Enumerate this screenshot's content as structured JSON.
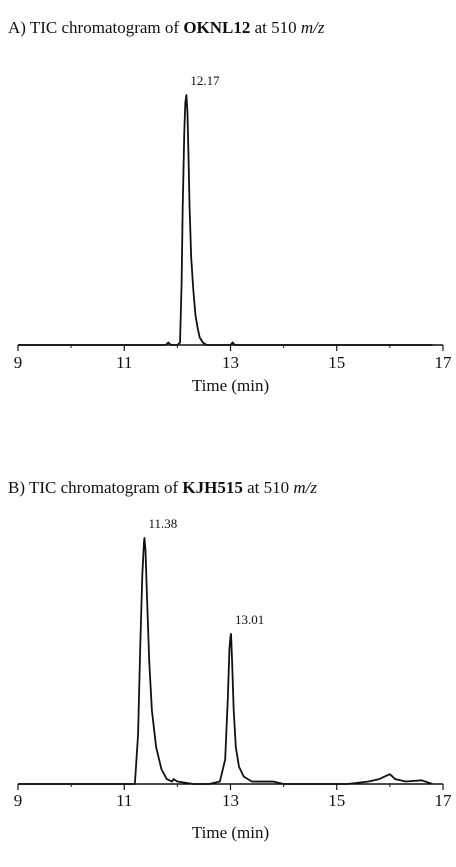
{
  "chart_data": [
    {
      "type": "line",
      "title_prefix": "A) TIC chromatogram of ",
      "title_compound": "OKNL12",
      "title_middle": " at 510 ",
      "title_unit": "m/z",
      "xlabel": "Time (min)",
      "ylabel": "",
      "xlim": [
        9,
        17
      ],
      "xticks": [
        "9",
        "11",
        "13",
        "15",
        "17"
      ],
      "grid": false,
      "series": [
        {
          "x": [
            9.0,
            11.5,
            11.78,
            11.83,
            11.88,
            11.95,
            12.0,
            12.05,
            12.08,
            12.1,
            12.13,
            12.15,
            12.17,
            12.19,
            12.21,
            12.23,
            12.26,
            12.3,
            12.34,
            12.38,
            12.42,
            12.48,
            12.55,
            12.7,
            13.0,
            13.04,
            13.08,
            13.15,
            14.0,
            16.8
          ],
          "y": [
            0.0,
            0.0,
            0.0,
            0.01,
            0.0,
            0.0,
            0.0,
            0.01,
            0.25,
            0.55,
            0.85,
            0.97,
            1.0,
            0.93,
            0.75,
            0.55,
            0.35,
            0.22,
            0.12,
            0.07,
            0.03,
            0.01,
            0.0,
            0.0,
            0.0,
            0.01,
            0.0,
            0.0,
            0.0,
            0.0
          ]
        }
      ],
      "annotations": [
        {
          "text": "12.17",
          "x": 12.17,
          "y": 1.0
        }
      ]
    },
    {
      "type": "line",
      "title_prefix": "B) TIC chromatogram of ",
      "title_compound": "KJH515",
      "title_middle": " at 510 ",
      "title_unit": "m/z",
      "xlabel": "Time (min)",
      "ylabel": "",
      "xlim": [
        9,
        17
      ],
      "xticks": [
        "9",
        "11",
        "13",
        "15",
        "17"
      ],
      "grid": false,
      "series": [
        {
          "x": [
            9.0,
            11.1,
            11.2,
            11.26,
            11.3,
            11.34,
            11.37,
            11.38,
            11.4,
            11.43,
            11.47,
            11.52,
            11.6,
            11.7,
            11.8,
            11.9,
            11.93,
            12.0,
            12.3,
            12.6,
            12.8,
            12.9,
            12.95,
            12.98,
            13.0,
            13.01,
            13.03,
            13.06,
            13.1,
            13.16,
            13.25,
            13.4,
            13.8,
            14.0,
            14.5,
            15.2,
            15.6,
            15.8,
            15.9,
            16.0,
            16.1,
            16.3,
            16.6,
            16.8
          ],
          "y": [
            0.0,
            0.0,
            0.0,
            0.2,
            0.55,
            0.85,
            0.98,
            1.0,
            0.95,
            0.75,
            0.5,
            0.3,
            0.15,
            0.06,
            0.02,
            0.01,
            0.02,
            0.01,
            0.0,
            0.0,
            0.01,
            0.1,
            0.35,
            0.55,
            0.6,
            0.61,
            0.5,
            0.3,
            0.15,
            0.07,
            0.03,
            0.01,
            0.01,
            0.0,
            0.0,
            0.0,
            0.01,
            0.02,
            0.03,
            0.04,
            0.02,
            0.01,
            0.015,
            0.0
          ]
        }
      ],
      "annotations": [
        {
          "text": "11.38",
          "x": 11.38,
          "y": 1.0
        },
        {
          "text": "13.01",
          "x": 13.01,
          "y": 0.61
        }
      ]
    }
  ]
}
